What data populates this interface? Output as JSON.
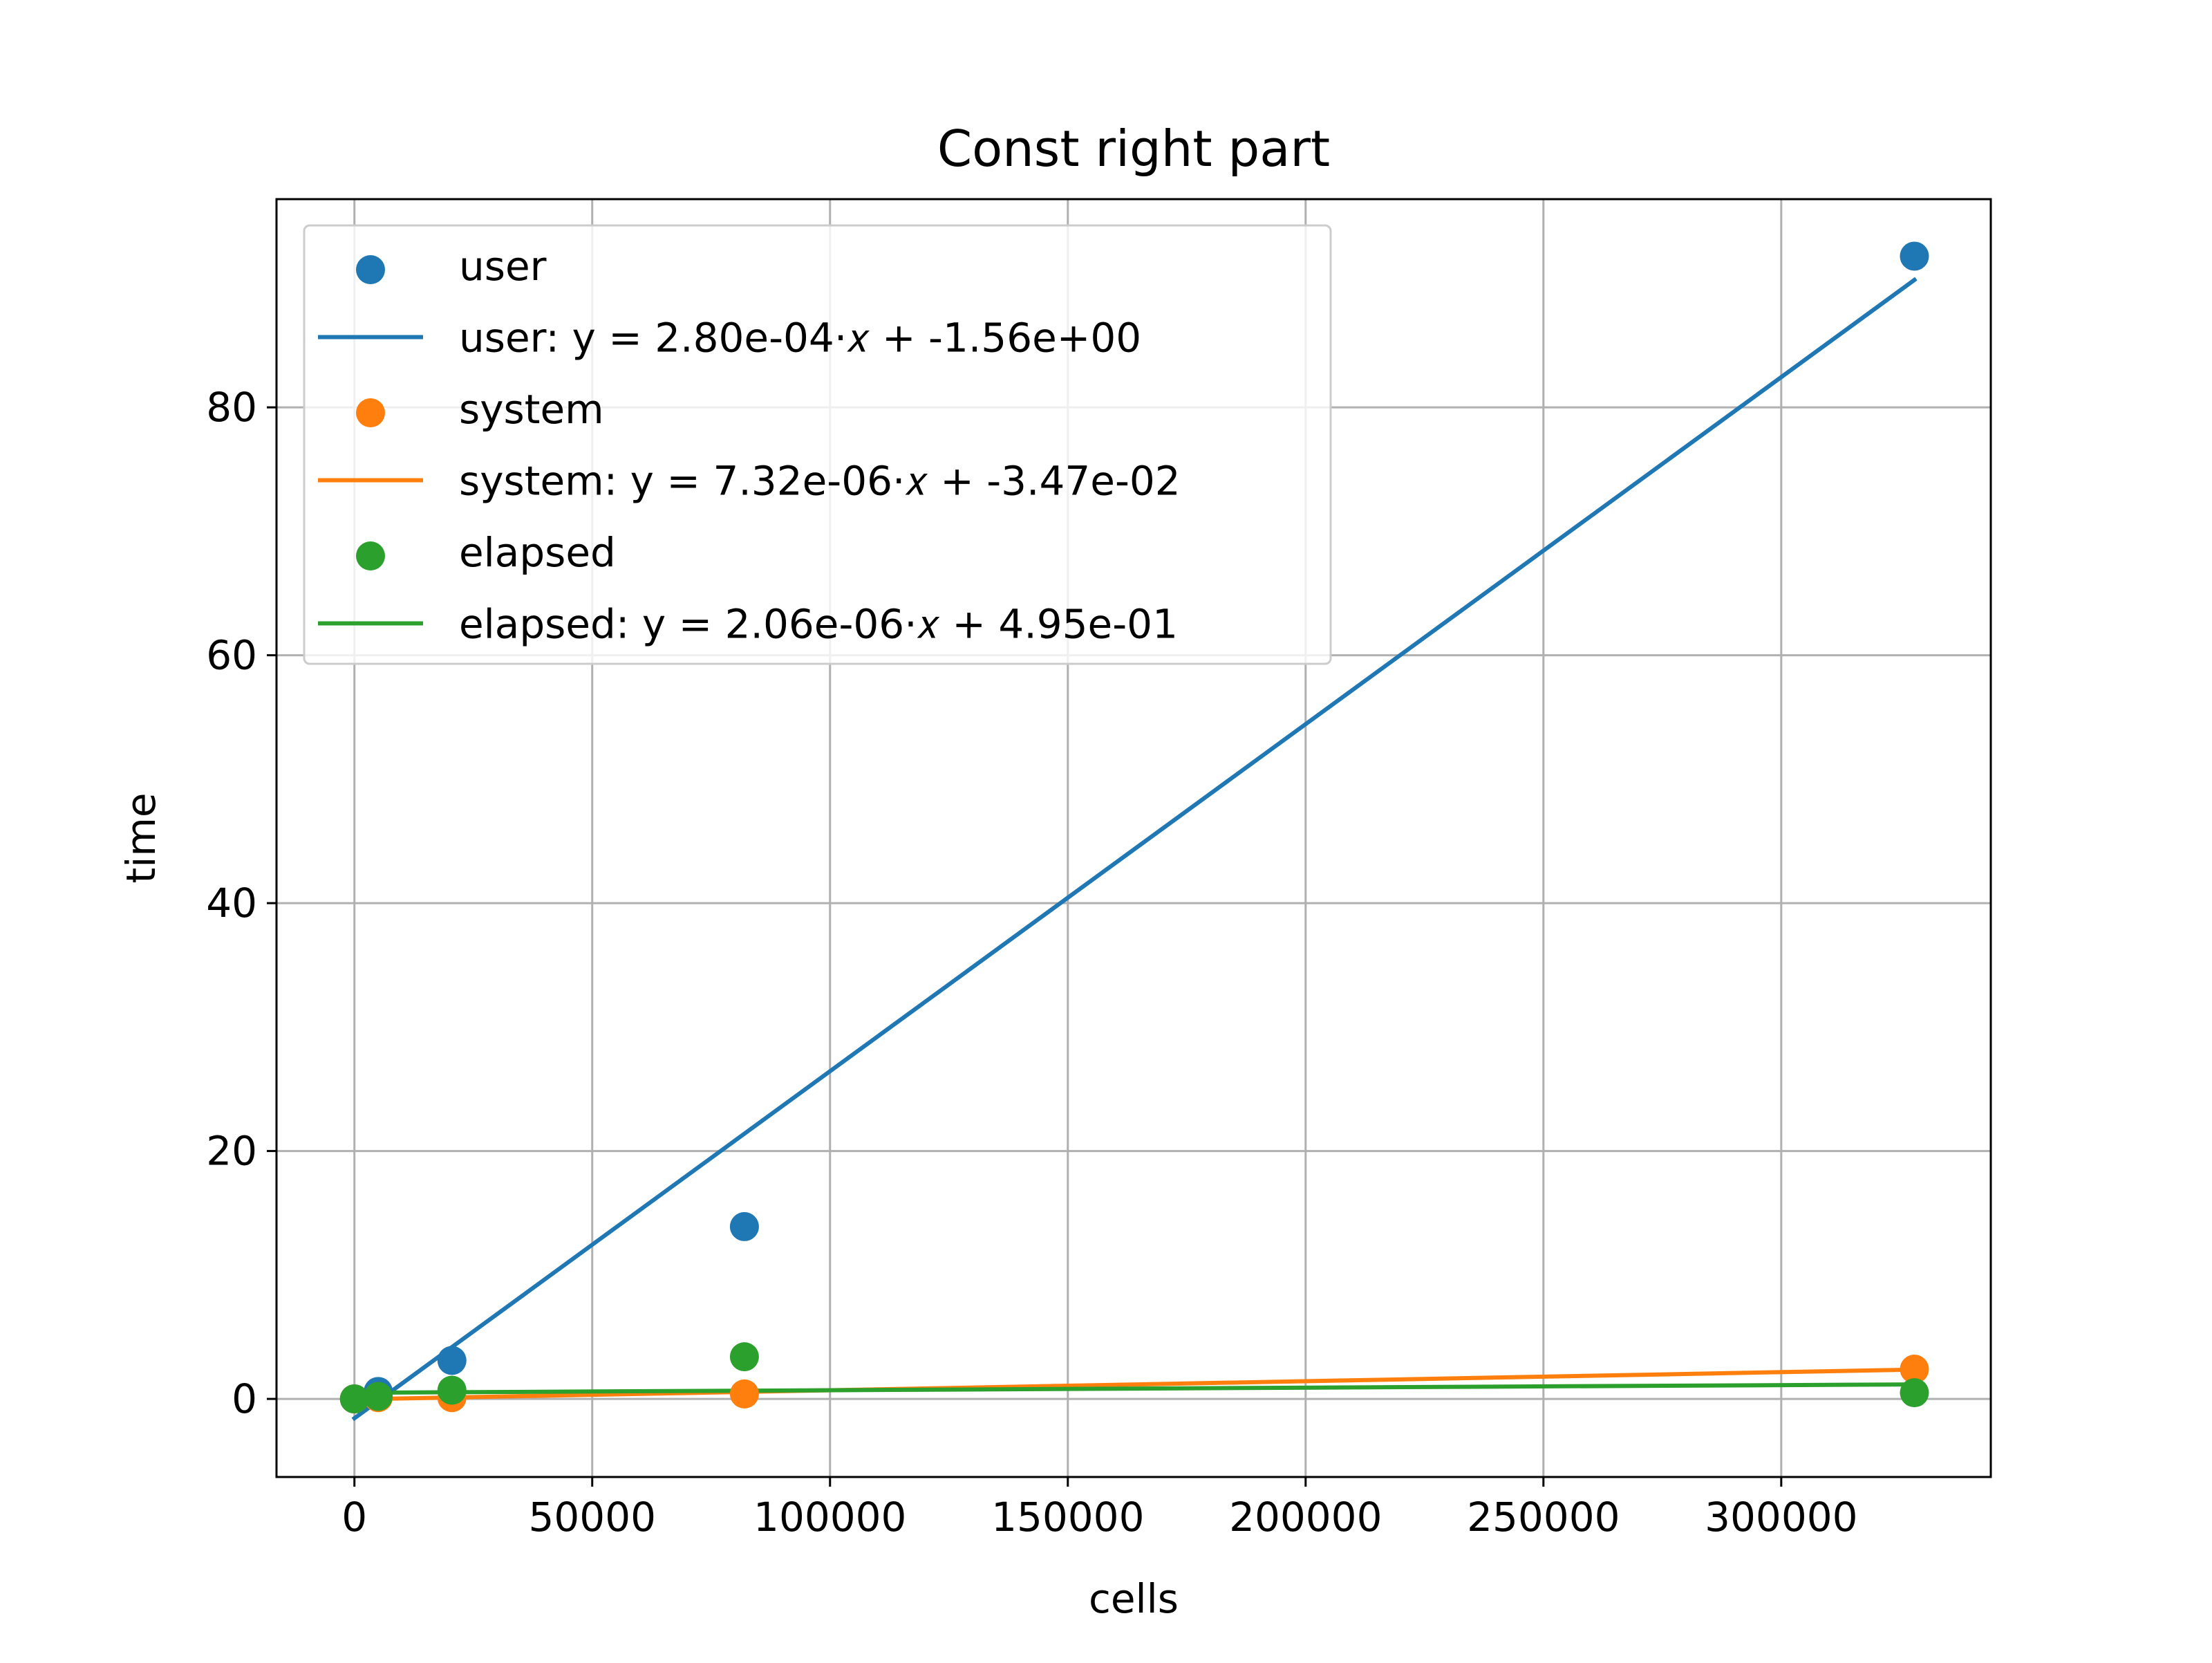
{
  "chart_data": {
    "type": "scatter",
    "title": "Const right part",
    "xlabel": "cells",
    "ylabel": "time",
    "xlim": [
      -16384,
      344064
    ],
    "ylim": [
      -6.3,
      96.8
    ],
    "xticks": [
      0,
      50000,
      100000,
      150000,
      200000,
      250000,
      300000
    ],
    "yticks": [
      0,
      20,
      40,
      60,
      80
    ],
    "grid": true,
    "legend_location": "upper left",
    "series": [
      {
        "name": "user",
        "kind": "scatter",
        "color": "#1f77b4",
        "points": [
          {
            "x": 0,
            "y": 0.0
          },
          {
            "x": 5000,
            "y": 0.6
          },
          {
            "x": 20500,
            "y": 3.1
          },
          {
            "x": 82000,
            "y": 13.9
          },
          {
            "x": 328000,
            "y": 92.2
          }
        ]
      },
      {
        "name": "user: y = 2.80e-04·x + -1.56e+00",
        "legend_text": "user: y = 2.80e-04·𝑥 + -1.56e+00",
        "kind": "line",
        "color": "#1f77b4",
        "slope": 0.00028,
        "intercept": -1.56,
        "x_range": [
          0,
          328000
        ]
      },
      {
        "name": "system",
        "kind": "scatter",
        "color": "#ff7f0e",
        "points": [
          {
            "x": 0,
            "y": 0.0
          },
          {
            "x": 5000,
            "y": 0.1
          },
          {
            "x": 20500,
            "y": 0.1
          },
          {
            "x": 82000,
            "y": 0.4
          },
          {
            "x": 328000,
            "y": 2.4
          }
        ]
      },
      {
        "name": "system: y = 7.32e-06·x + -3.47e-02",
        "legend_text": "system: y = 7.32e-06·𝑥 + -3.47e-02",
        "kind": "line",
        "color": "#ff7f0e",
        "slope": 7.32e-06,
        "intercept": -0.0347,
        "x_range": [
          0,
          328000
        ]
      },
      {
        "name": "elapsed",
        "kind": "scatter",
        "color": "#2ca02c",
        "points": [
          {
            "x": 0,
            "y": 0.0
          },
          {
            "x": 5000,
            "y": 0.2
          },
          {
            "x": 20500,
            "y": 0.7
          },
          {
            "x": 82000,
            "y": 3.4
          },
          {
            "x": 328000,
            "y": 0.5
          }
        ]
      },
      {
        "name": "elapsed: y = 2.06e-06·x + 4.95e-01",
        "legend_text": "elapsed: y = 2.06e-06·𝑥 + 4.95e-01",
        "kind": "line",
        "color": "#2ca02c",
        "slope": 2.06e-06,
        "intercept": 0.495,
        "x_range": [
          0,
          328000
        ]
      }
    ]
  }
}
